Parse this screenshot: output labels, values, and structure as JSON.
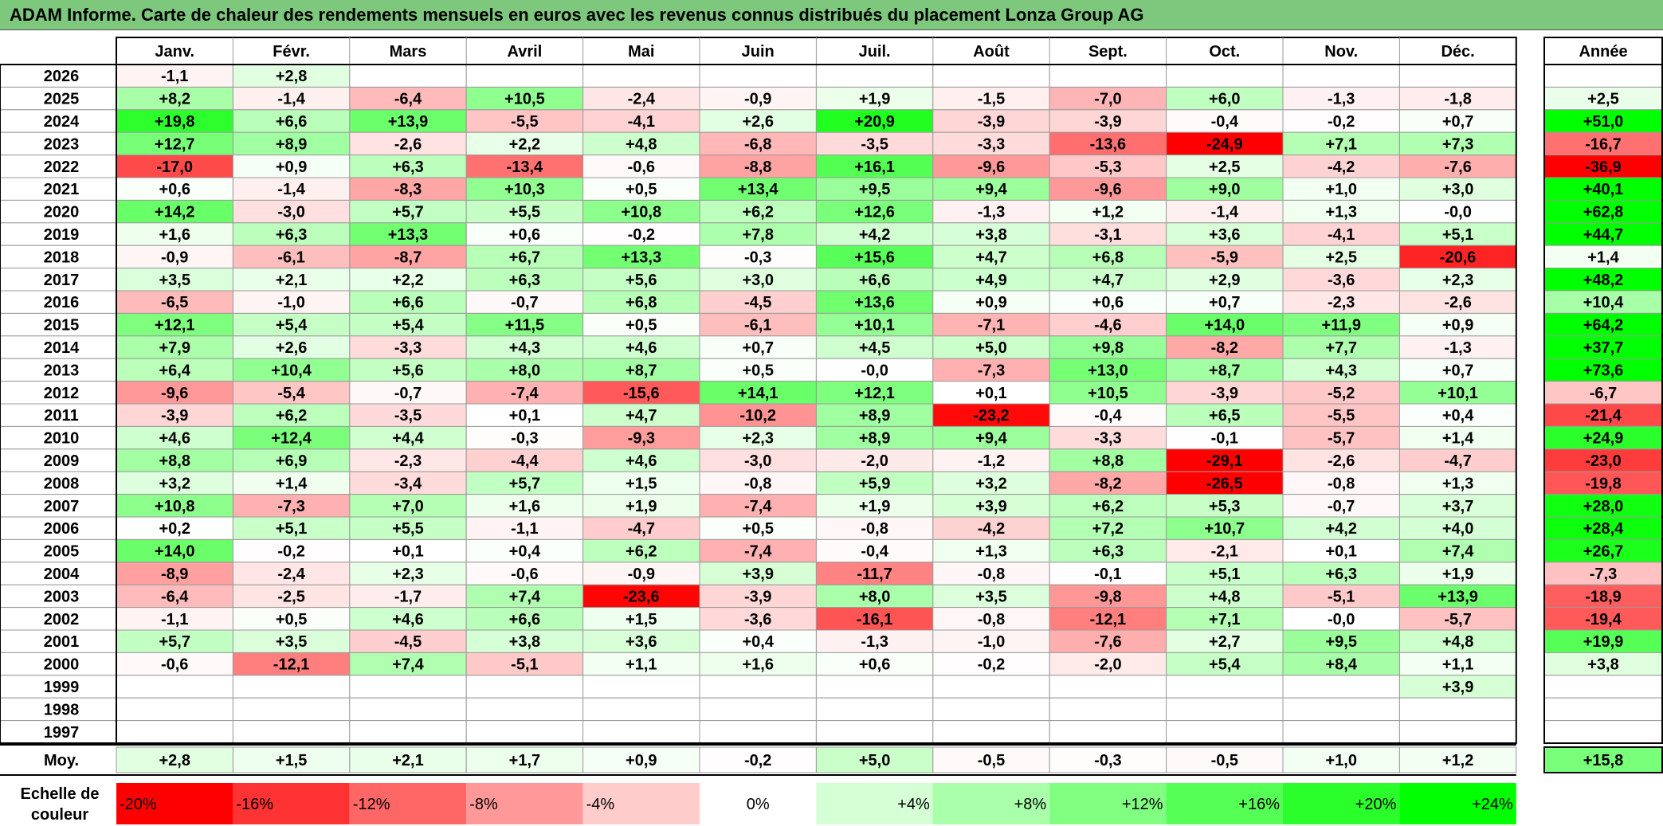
{
  "title": "ADAM Informe. Carte de chaleur des rendements mensuels en euros avec les revenus connus distribués du placement Lonza Group AG",
  "chart_data": {
    "type": "heatmap",
    "title": "ADAM Informe. Carte de chaleur des rendements mensuels en euros avec les revenus connus distribués du placement Lonza Group AG",
    "months": [
      "Janv.",
      "Févr.",
      "Mars",
      "Avril",
      "Mai",
      "Juin",
      "Juil.",
      "Août",
      "Sept.",
      "Oct.",
      "Nov.",
      "Déc."
    ],
    "year_label": "Année",
    "avg_label": "Moy.",
    "scale_label_line1": "Echelle de",
    "scale_label_line2": "couleur",
    "rows": [
      {
        "year": "2026",
        "values": [
          "-1,1",
          "+2,8",
          "",
          "",
          "",
          "",
          "",
          "",
          "",
          "",
          "",
          ""
        ],
        "annual": ""
      },
      {
        "year": "2025",
        "values": [
          "+8,2",
          "-1,4",
          "-6,4",
          "+10,5",
          "-2,4",
          "-0,9",
          "+1,9",
          "-1,5",
          "-7,0",
          "+6,0",
          "-1,3",
          "-1,8"
        ],
        "annual": "+2,5"
      },
      {
        "year": "2024",
        "values": [
          "+19,8",
          "+6,6",
          "+13,9",
          "-5,5",
          "-4,1",
          "+2,6",
          "+20,9",
          "-3,9",
          "-3,9",
          "-0,4",
          "-0,2",
          "+0,7"
        ],
        "annual": "+51,0"
      },
      {
        "year": "2023",
        "values": [
          "+12,7",
          "+8,9",
          "-2,6",
          "+2,2",
          "+4,8",
          "-6,8",
          "-3,5",
          "-3,3",
          "-13,6",
          "-24,9",
          "+7,1",
          "+7,3"
        ],
        "annual": "-16,7"
      },
      {
        "year": "2022",
        "values": [
          "-17,0",
          "+0,9",
          "+6,3",
          "-13,4",
          "-0,6",
          "-8,8",
          "+16,1",
          "-9,6",
          "-5,3",
          "+2,5",
          "-4,2",
          "-7,6"
        ],
        "annual": "-36,9"
      },
      {
        "year": "2021",
        "values": [
          "+0,6",
          "-1,4",
          "-8,3",
          "+10,3",
          "+0,5",
          "+13,4",
          "+9,5",
          "+9,4",
          "-9,6",
          "+9,0",
          "+1,0",
          "+3,0"
        ],
        "annual": "+40,1"
      },
      {
        "year": "2020",
        "values": [
          "+14,2",
          "-3,0",
          "+5,7",
          "+5,5",
          "+10,8",
          "+6,2",
          "+12,6",
          "-1,3",
          "+1,2",
          "-1,4",
          "+1,3",
          "-0,0"
        ],
        "annual": "+62,8"
      },
      {
        "year": "2019",
        "values": [
          "+1,6",
          "+6,3",
          "+13,3",
          "+0,6",
          "-0,2",
          "+7,8",
          "+4,2",
          "+3,8",
          "-3,1",
          "+3,6",
          "-4,1",
          "+5,1"
        ],
        "annual": "+44,7"
      },
      {
        "year": "2018",
        "values": [
          "-0,9",
          "-6,1",
          "-8,7",
          "+6,7",
          "+13,3",
          "-0,3",
          "+15,6",
          "+4,7",
          "+6,8",
          "-5,9",
          "+2,5",
          "-20,6"
        ],
        "annual": "+1,4"
      },
      {
        "year": "2017",
        "values": [
          "+3,5",
          "+2,1",
          "+2,2",
          "+6,3",
          "+5,6",
          "+3,0",
          "+6,6",
          "+4,9",
          "+4,7",
          "+2,9",
          "-3,6",
          "+2,3"
        ],
        "annual": "+48,2"
      },
      {
        "year": "2016",
        "values": [
          "-6,5",
          "-1,0",
          "+6,6",
          "-0,7",
          "+6,8",
          "-4,5",
          "+13,6",
          "+0,9",
          "+0,6",
          "+0,7",
          "-2,3",
          "-2,6"
        ],
        "annual": "+10,4"
      },
      {
        "year": "2015",
        "values": [
          "+12,1",
          "+5,4",
          "+5,4",
          "+11,5",
          "+0,5",
          "-6,1",
          "+10,1",
          "-7,1",
          "-4,6",
          "+14,0",
          "+11,9",
          "+0,9"
        ],
        "annual": "+64,2"
      },
      {
        "year": "2014",
        "values": [
          "+7,9",
          "+2,6",
          "-3,3",
          "+4,3",
          "+4,6",
          "+0,7",
          "+4,5",
          "+5,0",
          "+9,8",
          "-8,2",
          "+7,7",
          "-1,3"
        ],
        "annual": "+37,7"
      },
      {
        "year": "2013",
        "values": [
          "+6,4",
          "+10,4",
          "+5,6",
          "+8,0",
          "+8,7",
          "+0,5",
          "-0,0",
          "-7,3",
          "+13,0",
          "+8,7",
          "+4,3",
          "+0,7"
        ],
        "annual": "+73,6"
      },
      {
        "year": "2012",
        "values": [
          "-9,6",
          "-5,4",
          "-0,7",
          "-7,4",
          "-15,6",
          "+14,1",
          "+12,1",
          "+0,1",
          "+10,5",
          "-3,9",
          "-5,2",
          "+10,1"
        ],
        "annual": "-6,7"
      },
      {
        "year": "2011",
        "values": [
          "-3,9",
          "+6,2",
          "-3,5",
          "+0,1",
          "+4,7",
          "-10,2",
          "+8,9",
          "-23,2",
          "-0,4",
          "+6,5",
          "-5,5",
          "+0,4"
        ],
        "annual": "-21,4"
      },
      {
        "year": "2010",
        "values": [
          "+4,6",
          "+12,4",
          "+4,4",
          "-0,3",
          "-9,3",
          "+2,3",
          "+8,9",
          "+9,4",
          "-3,3",
          "-0,1",
          "-5,7",
          "+1,4"
        ],
        "annual": "+24,9"
      },
      {
        "year": "2009",
        "values": [
          "+8,8",
          "+6,9",
          "-2,3",
          "-4,4",
          "+4,6",
          "-3,0",
          "-2,0",
          "-1,2",
          "+8,8",
          "-29,1",
          "-2,6",
          "-4,7"
        ],
        "annual": "-23,0"
      },
      {
        "year": "2008",
        "values": [
          "+3,2",
          "+1,4",
          "-3,4",
          "+5,7",
          "+1,5",
          "-0,8",
          "+5,9",
          "+3,2",
          "-8,2",
          "-26,5",
          "-0,8",
          "+1,3"
        ],
        "annual": "-19,8"
      },
      {
        "year": "2007",
        "values": [
          "+10,8",
          "-7,3",
          "+7,0",
          "+1,6",
          "+1,9",
          "-7,4",
          "+1,9",
          "+3,9",
          "+6,2",
          "+5,3",
          "-0,7",
          "+3,7"
        ],
        "annual": "+28,0"
      },
      {
        "year": "2006",
        "values": [
          "+0,2",
          "+5,1",
          "+5,5",
          "-1,1",
          "-4,7",
          "+0,5",
          "-0,8",
          "-4,2",
          "+7,2",
          "+10,7",
          "+4,2",
          "+4,0"
        ],
        "annual": "+28,4"
      },
      {
        "year": "2005",
        "values": [
          "+14,0",
          "-0,2",
          "+0,1",
          "+0,4",
          "+6,2",
          "-7,4",
          "-0,4",
          "+1,3",
          "+6,3",
          "-2,1",
          "+0,1",
          "+7,4"
        ],
        "annual": "+26,7"
      },
      {
        "year": "2004",
        "values": [
          "-8,9",
          "-2,4",
          "+2,3",
          "-0,6",
          "-0,9",
          "+3,9",
          "-11,7",
          "-0,8",
          "-0,1",
          "+5,1",
          "+6,3",
          "+1,9"
        ],
        "annual": "-7,3"
      },
      {
        "year": "2003",
        "values": [
          "-6,4",
          "-2,5",
          "-1,7",
          "+7,4",
          "-23,6",
          "-3,9",
          "+8,0",
          "+3,5",
          "-9,8",
          "+4,8",
          "-5,1",
          "+13,9"
        ],
        "annual": "-18,9"
      },
      {
        "year": "2002",
        "values": [
          "-1,1",
          "+0,5",
          "+4,6",
          "+6,6",
          "+1,5",
          "-3,6",
          "-16,1",
          "-0,8",
          "-12,1",
          "+7,1",
          "-0,0",
          "-5,7"
        ],
        "annual": "-19,4"
      },
      {
        "year": "2001",
        "values": [
          "+5,7",
          "+3,5",
          "-4,5",
          "+3,8",
          "+3,6",
          "+0,4",
          "-1,3",
          "-1,0",
          "-7,6",
          "+2,7",
          "+9,5",
          "+4,8"
        ],
        "annual": "+19,9"
      },
      {
        "year": "2000",
        "values": [
          "-0,6",
          "-12,1",
          "+7,4",
          "-5,1",
          "+1,1",
          "+1,6",
          "+0,6",
          "-0,2",
          "-2,0",
          "+5,4",
          "+8,4",
          "+1,1"
        ],
        "annual": "+3,8"
      },
      {
        "year": "1999",
        "values": [
          "",
          "",
          "",
          "",
          "",
          "",
          "",
          "",
          "",
          "",
          "",
          "+3,9"
        ],
        "annual": ""
      },
      {
        "year": "1998",
        "values": [
          "",
          "",
          "",
          "",
          "",
          "",
          "",
          "",
          "",
          "",
          "",
          ""
        ],
        "annual": ""
      },
      {
        "year": "1997",
        "values": [
          "",
          "",
          "",
          "",
          "",
          "",
          "",
          "",
          "",
          "",
          "",
          ""
        ],
        "annual": ""
      }
    ],
    "averages": [
      "+2,8",
      "+1,5",
      "+2,1",
      "+1,7",
      "+0,9",
      "-0,2",
      "+5,0",
      "-0,5",
      "-0,3",
      "-0,5",
      "+1,0",
      "+1,2"
    ],
    "annual_average": "+15,8",
    "scale": [
      "-20%",
      "-16%",
      "-12%",
      "-8%",
      "-4%",
      "0%",
      "+4%",
      "+8%",
      "+12%",
      "+16%",
      "+20%",
      "+24%"
    ],
    "colors": {
      "title_bg": "#7dc87d",
      "negative_max": "#ff0000",
      "neutral": "#ffffff",
      "positive_max": "#00ff00"
    }
  }
}
